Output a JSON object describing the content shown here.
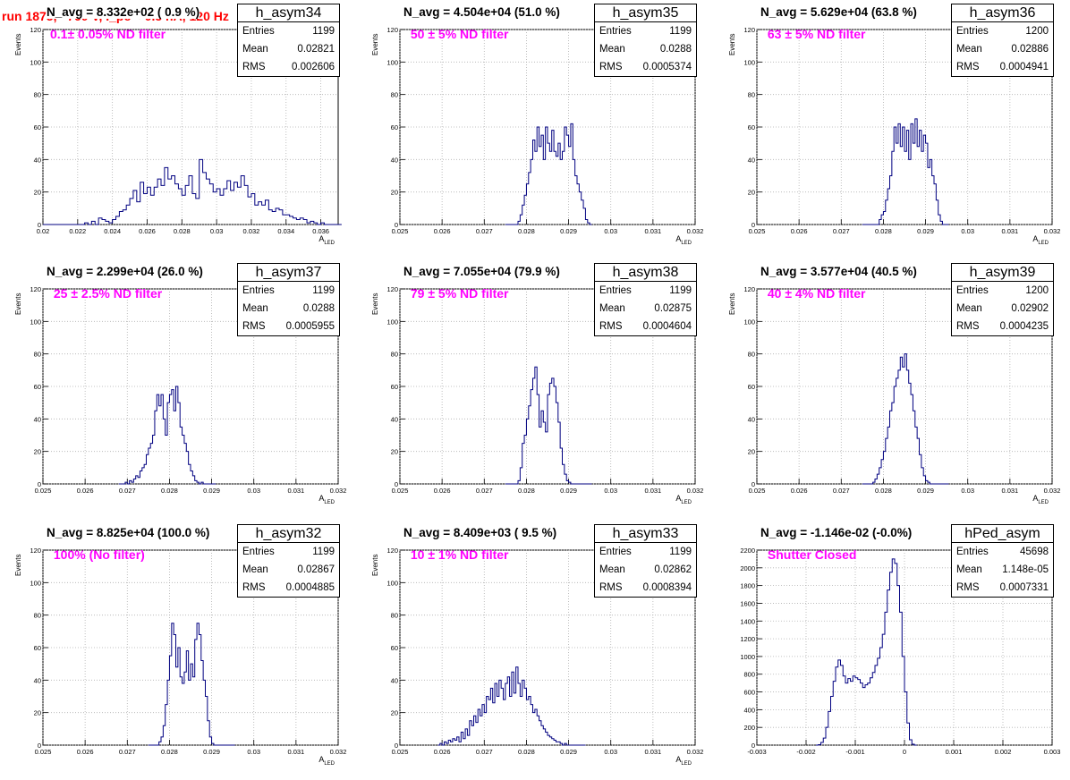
{
  "page_title": "run 1875,   760 V, I_pe ≈ 0.5 nA, 120 Hz",
  "colors": {
    "histogram": "#000080",
    "title": "#ff0000",
    "filter_text": "#ff00ff",
    "grid": "#b0b0b0"
  },
  "chart_data": [
    {
      "type": "histogram",
      "name": "h_asym34",
      "navg": "N_avg = 8.332e+02 ( 0.9 %)",
      "filter": "0.1± 0.05% ND filter",
      "stats": {
        "entries_label": "Entries",
        "entries": "1199",
        "mean_label": "Mean",
        "mean": "0.02821",
        "rms_label": "RMS",
        "rms": "0.002606"
      },
      "ylabel": "Events",
      "xlabel": "A",
      "xlabel_sub": "LED",
      "xlim": [
        0.02,
        0.037
      ],
      "ylim": [
        0,
        120
      ],
      "xticks": [
        0.02,
        0.022,
        0.024,
        0.026,
        0.028,
        0.03,
        0.032,
        0.034,
        0.036
      ],
      "xtick_labels": [
        "0.02",
        "0.022",
        "0.024",
        "0.026",
        "0.028",
        "0.03",
        "0.032",
        "0.034",
        "0.036"
      ],
      "yticks": [
        0,
        20,
        40,
        60,
        80,
        100,
        120
      ],
      "ytick_labels": [
        "0",
        "20",
        "40",
        "60",
        "80",
        "100",
        "120"
      ],
      "bin_start": 0.02,
      "bin_width": 0.0002,
      "counts": [
        0,
        0,
        0,
        0,
        0,
        0,
        0,
        0,
        0,
        0,
        0,
        0,
        1,
        0,
        2,
        0,
        4,
        3,
        2,
        1,
        3,
        5,
        8,
        9,
        12,
        16,
        21,
        14,
        26,
        19,
        23,
        18,
        23,
        28,
        24,
        35,
        28,
        30,
        25,
        22,
        18,
        24,
        30,
        19,
        16,
        40,
        32,
        28,
        25,
        20,
        22,
        18,
        22,
        27,
        21,
        26,
        23,
        30,
        24,
        17,
        19,
        12,
        14,
        12,
        15,
        9,
        8,
        10,
        9,
        6,
        6,
        5,
        4,
        3,
        4,
        3,
        1,
        2,
        1,
        0,
        1,
        0,
        0,
        0,
        0,
        0
      ]
    },
    {
      "type": "histogram",
      "name": "h_asym35",
      "navg": "N_avg = 4.504e+04 (51.0 %)",
      "filter": " 50 ± 5% ND filter",
      "stats": {
        "entries_label": "Entries",
        "entries": "1199",
        "mean_label": "Mean",
        "mean": "0.0288",
        "rms_label": "RMS",
        "rms": "0.0005374"
      },
      "ylabel": "Events",
      "xlabel": "A",
      "xlabel_sub": "LED",
      "xlim": [
        0.025,
        0.032
      ],
      "ylim": [
        0,
        120
      ],
      "xticks": [
        0.025,
        0.026,
        0.027,
        0.028,
        0.029,
        0.03,
        0.031,
        0.032
      ],
      "xtick_labels": [
        "0.025",
        "0.026",
        "0.027",
        "0.028",
        "0.029",
        "0.03",
        "0.031",
        "0.032"
      ],
      "yticks": [
        0,
        20,
        40,
        60,
        80,
        100,
        120
      ],
      "ytick_labels": [
        "0",
        "20",
        "40",
        "60",
        "80",
        "100",
        "120"
      ],
      "bin_start": 0.0275,
      "bin_width": 5e-05,
      "counts": [
        0,
        0,
        0,
        0,
        0,
        0,
        2,
        6,
        12,
        18,
        25,
        32,
        40,
        52,
        45,
        60,
        48,
        55,
        40,
        60,
        50,
        45,
        58,
        45,
        42,
        50,
        40,
        45,
        60,
        55,
        48,
        62,
        40,
        30,
        25,
        20,
        15,
        10,
        3,
        1,
        0
      ]
    },
    {
      "type": "histogram",
      "name": "h_asym36",
      "navg": "N_avg = 5.629e+04 (63.8 %)",
      "filter": " 63 ± 5% ND filter",
      "stats": {
        "entries_label": "Entries",
        "entries": "1200",
        "mean_label": "Mean",
        "mean": "0.02886",
        "rms_label": "RMS",
        "rms": "0.0004941"
      },
      "ylabel": "Events",
      "xlabel": "A",
      "xlabel_sub": "LED",
      "xlim": [
        0.025,
        0.032
      ],
      "ylim": [
        0,
        120
      ],
      "xticks": [
        0.025,
        0.026,
        0.027,
        0.028,
        0.029,
        0.03,
        0.031,
        0.032
      ],
      "xtick_labels": [
        "0.025",
        "0.026",
        "0.027",
        "0.028",
        "0.029",
        "0.03",
        "0.031",
        "0.032"
      ],
      "yticks": [
        0,
        20,
        40,
        60,
        80,
        100,
        120
      ],
      "ytick_labels": [
        "0",
        "20",
        "40",
        "60",
        "80",
        "100",
        "120"
      ],
      "bin_start": 0.0275,
      "bin_width": 5e-05,
      "counts": [
        0,
        0,
        0,
        0,
        0,
        0,
        0,
        0,
        3,
        6,
        8,
        15,
        22,
        30,
        45,
        60,
        50,
        62,
        48,
        60,
        45,
        58,
        40,
        62,
        50,
        65,
        48,
        58,
        45,
        55,
        50,
        35,
        40,
        30,
        25,
        15,
        6,
        2,
        0,
        0,
        0
      ]
    },
    {
      "type": "histogram",
      "name": "h_asym37",
      "navg": "N_avg = 2.299e+04 (26.0 %)",
      "filter": " 25 ± 2.5% ND filter",
      "stats": {
        "entries_label": "Entries",
        "entries": "1199",
        "mean_label": "Mean",
        "mean": "0.0288",
        "rms_label": "RMS",
        "rms": "0.0005955"
      },
      "ylabel": "Events",
      "xlabel": "A",
      "xlabel_sub": "LED",
      "xlim": [
        0.025,
        0.032
      ],
      "ylim": [
        0,
        120
      ],
      "xticks": [
        0.025,
        0.026,
        0.027,
        0.028,
        0.029,
        0.03,
        0.031,
        0.032
      ],
      "xtick_labels": [
        "0.025",
        "0.026",
        "0.027",
        "0.028",
        "0.029",
        "0.03",
        "0.031",
        "0.032"
      ],
      "yticks": [
        0,
        20,
        40,
        60,
        80,
        100,
        120
      ],
      "ytick_labels": [
        "0",
        "20",
        "40",
        "60",
        "80",
        "100",
        "120"
      ],
      "bin_start": 0.0268,
      "bin_width": 5e-05,
      "counts": [
        0,
        0,
        0,
        1,
        0,
        2,
        1,
        3,
        5,
        4,
        8,
        10,
        12,
        18,
        22,
        25,
        30,
        45,
        55,
        48,
        55,
        40,
        30,
        50,
        55,
        58,
        45,
        60,
        50,
        35,
        30,
        25,
        20,
        12,
        8,
        5,
        2,
        1,
        0,
        1,
        0,
        0,
        0,
        0,
        0,
        0
      ]
    },
    {
      "type": "histogram",
      "name": "h_asym38",
      "navg": "N_avg = 7.055e+04 (79.9 %)",
      "filter": " 79 ± 5% ND filter",
      "stats": {
        "entries_label": "Entries",
        "entries": "1199",
        "mean_label": "Mean",
        "mean": "0.02875",
        "rms_label": "RMS",
        "rms": "0.0004604"
      },
      "ylabel": "Events",
      "xlabel": "A",
      "xlabel_sub": "LED",
      "xlim": [
        0.025,
        0.032
      ],
      "ylim": [
        0,
        120
      ],
      "xticks": [
        0.025,
        0.026,
        0.027,
        0.028,
        0.029,
        0.03,
        0.031,
        0.032
      ],
      "xtick_labels": [
        "0.025",
        "0.026",
        "0.027",
        "0.028",
        "0.029",
        "0.03",
        "0.031",
        "0.032"
      ],
      "yticks": [
        0,
        20,
        40,
        60,
        80,
        100,
        120
      ],
      "ytick_labels": [
        "0",
        "20",
        "40",
        "60",
        "80",
        "100",
        "120"
      ],
      "bin_start": 0.0275,
      "bin_width": 5e-05,
      "counts": [
        0,
        0,
        0,
        0,
        0,
        0,
        2,
        10,
        25,
        30,
        40,
        48,
        58,
        65,
        72,
        55,
        35,
        45,
        38,
        32,
        55,
        62,
        65,
        60,
        50,
        38,
        22,
        12,
        6,
        2,
        1,
        0,
        0,
        0,
        0,
        0,
        0,
        0,
        0,
        0,
        0
      ]
    },
    {
      "type": "histogram",
      "name": "h_asym39",
      "navg": "N_avg = 3.577e+04 (40.5 %)",
      "filter": " 40 ± 4% ND filter",
      "stats": {
        "entries_label": "Entries",
        "entries": "1200",
        "mean_label": "Mean",
        "mean": "0.02902",
        "rms_label": "RMS",
        "rms": "0.0004235"
      },
      "ylabel": "Events",
      "xlabel": "A",
      "xlabel_sub": "LED",
      "xlim": [
        0.025,
        0.032
      ],
      "ylim": [
        0,
        120
      ],
      "xticks": [
        0.025,
        0.026,
        0.027,
        0.028,
        0.029,
        0.03,
        0.031,
        0.032
      ],
      "xtick_labels": [
        "0.025",
        "0.026",
        "0.027",
        "0.028",
        "0.029",
        "0.03",
        "0.031",
        "0.032"
      ],
      "yticks": [
        0,
        20,
        40,
        60,
        80,
        100,
        120
      ],
      "ytick_labels": [
        "0",
        "20",
        "40",
        "60",
        "80",
        "100",
        "120"
      ],
      "bin_start": 0.0275,
      "bin_width": 5e-05,
      "counts": [
        0,
        0,
        0,
        0,
        0,
        1,
        3,
        6,
        10,
        15,
        20,
        28,
        35,
        45,
        50,
        60,
        65,
        70,
        78,
        72,
        80,
        70,
        62,
        55,
        45,
        35,
        28,
        18,
        10,
        5,
        2,
        1,
        0,
        0,
        0,
        0,
        0,
        0,
        0,
        0,
        0
      ]
    },
    {
      "type": "histogram",
      "name": "h_asym32",
      "navg": "N_avg = 8.825e+04 (100.0 %)",
      "filter": " 100% (No filter)",
      "stats": {
        "entries_label": "Entries",
        "entries": "1199",
        "mean_label": "Mean",
        "mean": "0.02867",
        "rms_label": "RMS",
        "rms": "0.0004885"
      },
      "ylabel": "Events",
      "xlabel": "A",
      "xlabel_sub": "LED",
      "xlim": [
        0.025,
        0.032
      ],
      "ylim": [
        0,
        120
      ],
      "xticks": [
        0.025,
        0.026,
        0.027,
        0.028,
        0.029,
        0.03,
        0.031,
        0.032
      ],
      "xtick_labels": [
        "0.025",
        "0.026",
        "0.027",
        "0.028",
        "0.029",
        "0.03",
        "0.031",
        "0.032"
      ],
      "yticks": [
        0,
        20,
        40,
        60,
        80,
        100,
        120
      ],
      "ytick_labels": [
        "0",
        "20",
        "40",
        "60",
        "80",
        "100",
        "120"
      ],
      "bin_start": 0.0275,
      "bin_width": 5e-05,
      "counts": [
        0,
        0,
        0,
        0,
        0,
        2,
        5,
        12,
        25,
        40,
        55,
        75,
        68,
        48,
        60,
        42,
        38,
        45,
        58,
        40,
        50,
        42,
        65,
        75,
        68,
        52,
        40,
        30,
        15,
        5,
        1,
        0,
        0,
        0,
        0,
        0,
        0,
        0,
        0,
        0,
        0
      ]
    },
    {
      "type": "histogram",
      "name": "h_asym33",
      "navg": "N_avg = 8.409e+03 ( 9.5 %)",
      "filter": " 10 ± 1% ND filter",
      "stats": {
        "entries_label": "Entries",
        "entries": "1199",
        "mean_label": "Mean",
        "mean": "0.02862",
        "rms_label": "RMS",
        "rms": "0.0008394"
      },
      "ylabel": "Events",
      "xlabel": "A",
      "xlabel_sub": "LED",
      "xlim": [
        0.025,
        0.032
      ],
      "ylim": [
        0,
        120
      ],
      "xticks": [
        0.025,
        0.026,
        0.027,
        0.028,
        0.029,
        0.03,
        0.031,
        0.032
      ],
      "xtick_labels": [
        "0.025",
        "0.026",
        "0.027",
        "0.028",
        "0.029",
        "0.03",
        "0.031",
        "0.032"
      ],
      "yticks": [
        0,
        20,
        40,
        60,
        80,
        100,
        120
      ],
      "ytick_labels": [
        "0",
        "20",
        "40",
        "60",
        "80",
        "100",
        "120"
      ],
      "bin_start": 0.0259,
      "bin_width": 5e-05,
      "counts": [
        0,
        1,
        0,
        2,
        1,
        3,
        2,
        4,
        3,
        5,
        2,
        8,
        4,
        10,
        6,
        15,
        12,
        18,
        14,
        22,
        18,
        25,
        20,
        30,
        28,
        35,
        26,
        38,
        30,
        40,
        35,
        28,
        38,
        42,
        30,
        45,
        32,
        48,
        38,
        30,
        40,
        35,
        28,
        30,
        25,
        20,
        22,
        18,
        15,
        12,
        10,
        8,
        6,
        5,
        4,
        3,
        2,
        2,
        1,
        0,
        1,
        0,
        0,
        0,
        0,
        0,
        0,
        0,
        0,
        0
      ]
    },
    {
      "type": "histogram",
      "name": "hPed_asym",
      "navg": "N_avg = -1.146e-02 (-0.0%)",
      "filter": " Shutter Closed",
      "stats": {
        "entries_label": "Entries",
        "entries": "45698",
        "mean_label": "Mean",
        "mean": "1.148e-05",
        "rms_label": "RMS",
        "rms": "0.0007331"
      },
      "ylabel": "",
      "xlabel": "",
      "xlabel_sub": "",
      "xlim": [
        -0.003,
        0.003
      ],
      "ylim": [
        0,
        2200
      ],
      "xticks": [
        -0.003,
        -0.002,
        -0.001,
        0,
        0.001,
        0.002,
        0.003
      ],
      "xtick_labels": [
        "-0.003",
        "-0.002",
        "-0.001",
        "0",
        "0.001",
        "0.002",
        "0.003"
      ],
      "yticks": [
        0,
        200,
        400,
        600,
        800,
        1000,
        1200,
        1400,
        1600,
        1800,
        2000,
        2200
      ],
      "ytick_labels": [
        "0",
        "200",
        "400",
        "600",
        "800",
        "1000",
        "1200",
        "1400",
        "1600",
        "1800",
        "2000",
        "2200"
      ],
      "bin_start": -0.0018,
      "bin_width": 5e-05,
      "counts": [
        0,
        5,
        30,
        80,
        200,
        380,
        550,
        720,
        880,
        960,
        900,
        780,
        700,
        750,
        720,
        780,
        760,
        740,
        700,
        650,
        680,
        700,
        760,
        820,
        900,
        980,
        1100,
        1250,
        1500,
        1750,
        1950,
        2100,
        2050,
        1800,
        1500,
        1000,
        600,
        250,
        60,
        10,
        0
      ]
    }
  ]
}
